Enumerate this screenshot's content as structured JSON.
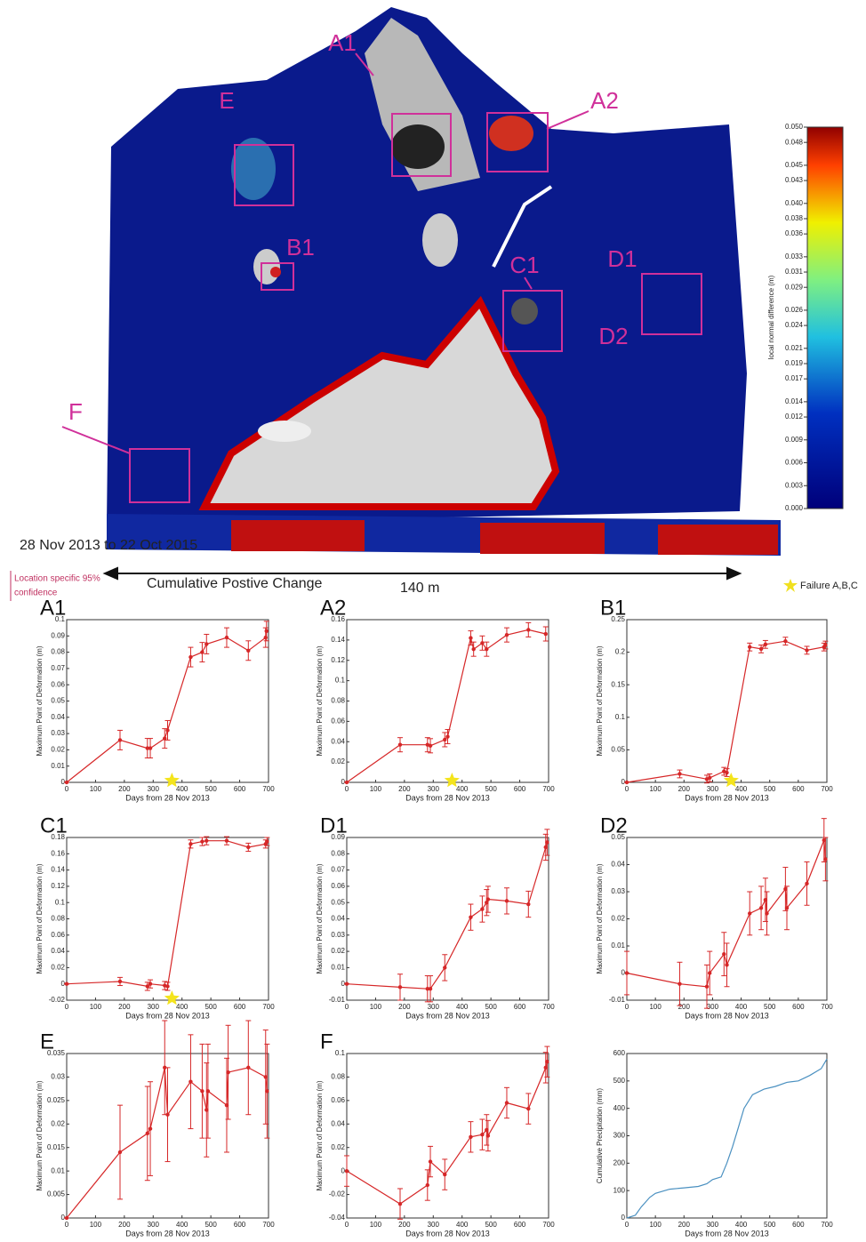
{
  "figure": {
    "map_labels": [
      "A1",
      "A2",
      "E",
      "B1",
      "C1",
      "D1",
      "D2",
      "F"
    ],
    "period": "28 Nov 2013 to 22 Oct 2015",
    "change_label": "Cumulative Postive Change",
    "scale_label": "140 m",
    "confidence_label": [
      "Location specific 95%",
      "confidence"
    ],
    "failure_legend": "Failure A,B,C"
  },
  "colorbar": {
    "label": "local normal difference (m)",
    "lim": [
      0,
      0.05
    ],
    "ticks": [
      {
        "value": 0.05,
        "label": "0.050"
      },
      {
        "value": 0.048,
        "label": "0.048"
      },
      {
        "value": 0.045,
        "label": "0.045"
      },
      {
        "value": 0.043,
        "label": "0.043"
      },
      {
        "value": 0.04,
        "label": "0.040"
      },
      {
        "value": 0.038,
        "label": "0.038"
      },
      {
        "value": 0.036,
        "label": "0.036"
      },
      {
        "value": 0.033,
        "label": "0.033"
      },
      {
        "value": 0.031,
        "label": "0.031"
      },
      {
        "value": 0.029,
        "label": "0.029"
      },
      {
        "value": 0.026,
        "label": "0.026"
      },
      {
        "value": 0.024,
        "label": "0.024"
      },
      {
        "value": 0.021,
        "label": "0.021"
      },
      {
        "value": 0.019,
        "label": "0.019"
      },
      {
        "value": 0.017,
        "label": "0.017"
      },
      {
        "value": 0.014,
        "label": "0.014"
      },
      {
        "value": 0.012,
        "label": "0.012"
      },
      {
        "value": 0.009,
        "label": "0.009"
      },
      {
        "value": 0.006,
        "label": "0.006"
      },
      {
        "value": 0.003,
        "label": "0.003"
      },
      {
        "value": 0,
        "label": "0.000"
      }
    ]
  },
  "chart_data": [
    {
      "type": "line",
      "title": "A1",
      "color": "#d62728",
      "xlabel": "Days from 28 Nov 2013",
      "ylabel": "Maximum Point of Deformation (m)",
      "x": [
        0,
        185,
        280,
        290,
        340,
        350,
        430,
        470,
        485,
        555,
        630,
        690,
        693
      ],
      "values": [
        0,
        0.026,
        0.021,
        0.021,
        0.027,
        0.032,
        0.077,
        0.08,
        0.085,
        0.089,
        0.081,
        0.089,
        0.093
      ],
      "errors": [
        0,
        0.006,
        0.006,
        0.006,
        0.006,
        0.006,
        0.006,
        0.006,
        0.006,
        0.006,
        0.006,
        0.006,
        0.006
      ],
      "failure_x": 365,
      "xlim": [
        0,
        700
      ],
      "xticks": [
        0,
        100,
        200,
        300,
        400,
        500,
        600,
        700
      ],
      "ylim": [
        0,
        0.1
      ],
      "yticks": [
        0,
        0.01,
        0.02,
        0.03,
        0.04,
        0.05,
        0.06,
        0.07,
        0.08,
        0.09,
        0.1
      ]
    },
    {
      "type": "line",
      "title": "A2",
      "color": "#d62728",
      "xlabel": "Days from 28 Nov 2013",
      "ylabel": "Maximum Point of Deformation (m)",
      "x": [
        0,
        185,
        280,
        290,
        340,
        350,
        430,
        440,
        470,
        485,
        555,
        630,
        690
      ],
      "values": [
        0,
        0.037,
        0.037,
        0.036,
        0.042,
        0.045,
        0.142,
        0.131,
        0.137,
        0.131,
        0.145,
        0.15,
        0.146
      ],
      "errors": [
        0,
        0.007,
        0.007,
        0.007,
        0.007,
        0.007,
        0.007,
        0.007,
        0.007,
        0.007,
        0.007,
        0.007,
        0.007
      ],
      "failure_x": 365,
      "xlim": [
        0,
        700
      ],
      "xticks": [
        0,
        100,
        200,
        300,
        400,
        500,
        600,
        700
      ],
      "ylim": [
        0,
        0.16
      ],
      "yticks": [
        0,
        0.02,
        0.04,
        0.06,
        0.08,
        0.1,
        0.12,
        0.14,
        0.16
      ]
    },
    {
      "type": "line",
      "title": "B1",
      "color": "#d62728",
      "xlabel": "Days from 28 Nov 2013",
      "ylabel": "Maximum Point of Deformation (m)",
      "x": [
        0,
        185,
        280,
        290,
        340,
        350,
        430,
        470,
        485,
        555,
        630,
        690,
        695
      ],
      "values": [
        0,
        0.013,
        0.005,
        0.007,
        0.017,
        0.015,
        0.208,
        0.205,
        0.212,
        0.217,
        0.203,
        0.208,
        0.211
      ],
      "errors": [
        0,
        0.006,
        0.006,
        0.006,
        0.006,
        0.006,
        0.006,
        0.006,
        0.006,
        0.006,
        0.006,
        0.006,
        0.006
      ],
      "failure_x": 365,
      "xlim": [
        0,
        700
      ],
      "xticks": [
        0,
        100,
        200,
        300,
        400,
        500,
        600,
        700
      ],
      "ylim": [
        0,
        0.25
      ],
      "yticks": [
        0,
        0.05,
        0.1,
        0.15,
        0.2,
        0.25
      ]
    },
    {
      "type": "line",
      "title": "C1",
      "color": "#d62728",
      "xlabel": "Days from 28 Nov 2013",
      "ylabel": "Maximum Point of Deformation (m)",
      "x": [
        0,
        185,
        280,
        290,
        340,
        350,
        430,
        470,
        485,
        555,
        630,
        690,
        695
      ],
      "values": [
        0,
        0.003,
        -0.003,
        0,
        -0.002,
        -0.003,
        0.172,
        0.175,
        0.176,
        0.176,
        0.168,
        0.172,
        0.175
      ],
      "errors": [
        0,
        0.005,
        0.005,
        0.005,
        0.005,
        0.005,
        0.005,
        0.005,
        0.005,
        0.005,
        0.005,
        0.005,
        0.005
      ],
      "failure_x": 365,
      "xlim": [
        0,
        700
      ],
      "xticks": [
        0,
        100,
        200,
        300,
        400,
        500,
        600,
        700
      ],
      "ylim": [
        -0.02,
        0.18
      ],
      "yticks": [
        -0.02,
        0,
        0.02,
        0.04,
        0.06,
        0.08,
        0.1,
        0.12,
        0.14,
        0.16,
        0.18
      ]
    },
    {
      "type": "line",
      "title": "D1",
      "color": "#d62728",
      "xlabel": "Days from 28 Nov 2013",
      "ylabel": "Maximum Point of Deformation (m)",
      "x": [
        0,
        185,
        280,
        290,
        340,
        430,
        470,
        485,
        490,
        555,
        630,
        690,
        695
      ],
      "values": [
        0,
        -0.002,
        -0.003,
        -0.003,
        0.01,
        0.041,
        0.046,
        0.05,
        0.052,
        0.051,
        0.049,
        0.084,
        0.087
      ],
      "errors": [
        0,
        0.008,
        0.008,
        0.008,
        0.008,
        0.008,
        0.008,
        0.008,
        0.008,
        0.008,
        0.008,
        0.008,
        0.008
      ],
      "xlim": [
        0,
        700
      ],
      "xticks": [
        0,
        100,
        200,
        300,
        400,
        500,
        600,
        700
      ],
      "ylim": [
        -0.01,
        0.09
      ],
      "yticks": [
        -0.01,
        0,
        0.01,
        0.02,
        0.03,
        0.04,
        0.05,
        0.06,
        0.07,
        0.08,
        0.09
      ]
    },
    {
      "type": "line",
      "title": "D2",
      "color": "#d62728",
      "xlabel": "Days from 28 Nov 2013",
      "ylabel": "Maximum Point of Deformation (m)",
      "x": [
        0,
        185,
        280,
        290,
        340,
        350,
        430,
        470,
        485,
        490,
        555,
        560,
        630,
        690,
        695
      ],
      "values": [
        0,
        -0.004,
        -0.005,
        0,
        0.007,
        0.003,
        0.022,
        0.024,
        0.027,
        0.022,
        0.031,
        0.024,
        0.033,
        0.049,
        0.042
      ],
      "errors": [
        0.008,
        0.008,
        0.008,
        0.008,
        0.008,
        0.008,
        0.008,
        0.008,
        0.008,
        0.008,
        0.008,
        0.008,
        0.008,
        0.008,
        0.008
      ],
      "xlim": [
        0,
        700
      ],
      "xticks": [
        0,
        100,
        200,
        300,
        400,
        500,
        600,
        700
      ],
      "ylim": [
        -0.01,
        0.05
      ],
      "yticks": [
        -0.01,
        0,
        0.01,
        0.02,
        0.03,
        0.04,
        0.05
      ]
    },
    {
      "type": "line",
      "title": "E",
      "color": "#d62728",
      "xlabel": "Days from 28 Nov 2013",
      "ylabel": "Maximum Point of Deformation (m)",
      "x": [
        0,
        185,
        280,
        290,
        340,
        350,
        430,
        470,
        485,
        490,
        555,
        560,
        630,
        690,
        695
      ],
      "values": [
        0,
        0.014,
        0.018,
        0.019,
        0.032,
        0.022,
        0.029,
        0.027,
        0.023,
        0.027,
        0.024,
        0.031,
        0.032,
        0.03,
        0.027
      ],
      "errors": [
        0,
        0.01,
        0.01,
        0.01,
        0.01,
        0.01,
        0.01,
        0.01,
        0.01,
        0.01,
        0.01,
        0.01,
        0.01,
        0.01,
        0.01
      ],
      "xlim": [
        0,
        700
      ],
      "xticks": [
        0,
        100,
        200,
        300,
        400,
        500,
        600,
        700
      ],
      "ylim": [
        0,
        0.035
      ],
      "yticks": [
        0,
        0.005,
        0.01,
        0.015,
        0.02,
        0.025,
        0.03,
        0.035
      ]
    },
    {
      "type": "line",
      "title": "F",
      "color": "#d62728",
      "xlabel": "Days from 28 Nov 2013",
      "ylabel": "Maximum Point of Deformation (m)",
      "x": [
        0,
        185,
        280,
        290,
        340,
        430,
        470,
        485,
        490,
        555,
        630,
        690,
        695
      ],
      "values": [
        0,
        -0.028,
        -0.012,
        0.008,
        -0.003,
        0.029,
        0.031,
        0.035,
        0.03,
        0.058,
        0.053,
        0.088,
        0.093
      ],
      "errors": [
        0.013,
        0.013,
        0.013,
        0.013,
        0.013,
        0.013,
        0.013,
        0.013,
        0.013,
        0.013,
        0.013,
        0.013,
        0.013
      ],
      "xlim": [
        0,
        700
      ],
      "xticks": [
        0,
        100,
        200,
        300,
        400,
        500,
        600,
        700
      ],
      "ylim": [
        -0.04,
        0.1
      ],
      "yticks": [
        -0.04,
        -0.02,
        0,
        0.02,
        0.04,
        0.06,
        0.08,
        0.1
      ]
    },
    {
      "type": "line",
      "color": "#4a90c0",
      "xlabel": "Days from 28 Nov 2013",
      "ylabel": "Cumulative Precipitation (mm)",
      "x": [
        0,
        30,
        50,
        80,
        100,
        150,
        200,
        250,
        280,
        300,
        330,
        350,
        370,
        390,
        410,
        440,
        480,
        520,
        560,
        600,
        640,
        680,
        700
      ],
      "values": [
        0,
        10,
        40,
        75,
        90,
        105,
        110,
        115,
        125,
        140,
        150,
        200,
        260,
        330,
        400,
        450,
        470,
        480,
        495,
        500,
        520,
        545,
        580
      ],
      "xlim": [
        0,
        700
      ],
      "xticks": [
        0,
        100,
        200,
        300,
        400,
        500,
        600,
        700
      ],
      "ylim": [
        0,
        600
      ],
      "yticks": [
        0,
        100,
        200,
        300,
        400,
        500,
        600
      ]
    }
  ]
}
